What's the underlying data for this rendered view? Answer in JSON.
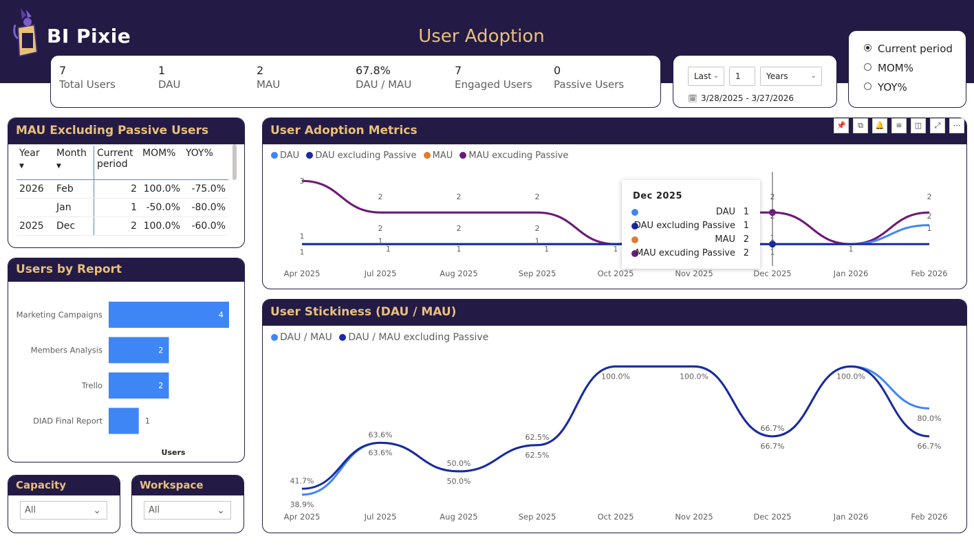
{
  "header": {
    "brand": "BI Pixie",
    "title": "User Adoption"
  },
  "kpis": [
    {
      "value": "7",
      "label": "Total Users"
    },
    {
      "value": "1",
      "label": "DAU"
    },
    {
      "value": "2",
      "label": "MAU"
    },
    {
      "value": "67.8%",
      "label": "DAU / MAU"
    },
    {
      "value": "7",
      "label": "Engaged Users"
    },
    {
      "value": "0",
      "label": "Passive Users"
    }
  ],
  "date_filter": {
    "relative": "Last",
    "amount": "1",
    "unit": "Years",
    "range": "3/28/2025 - 3/27/2026"
  },
  "period_options": [
    {
      "label": "Current period",
      "selected": true
    },
    {
      "label": "MOM%",
      "selected": false
    },
    {
      "label": "YOY%",
      "selected": false
    }
  ],
  "mau_table": {
    "title": "MAU Excluding Passive Users",
    "headers": [
      "Year",
      "Month",
      "Current period",
      "MOM%",
      "YOY%"
    ],
    "rows": [
      [
        "2026",
        "Feb",
        "2",
        "100.0%",
        "-75.0%"
      ],
      [
        "",
        "Jan",
        "1",
        "-50.0%",
        "-80.0%"
      ],
      [
        "2025",
        "Dec",
        "2",
        "100.0%",
        "-60.0%"
      ]
    ]
  },
  "users_by_report": {
    "title": "Users by Report",
    "xlabel": "Users",
    "chart_data": {
      "type": "bar",
      "orientation": "horizontal",
      "categories": [
        "Marketing Campaigns",
        "Members Analysis",
        "Trello",
        "DIAD Final Report"
      ],
      "values": [
        4,
        2,
        2,
        1
      ],
      "xlabel": "Users",
      "color": "#3e86f5"
    }
  },
  "slicers": {
    "capacity": {
      "title": "Capacity",
      "value": "All"
    },
    "workspace": {
      "title": "Workspace",
      "value": "All"
    }
  },
  "adoption_chart": {
    "title": "User Adoption Metrics",
    "toolbar_icons": [
      "pin-icon",
      "copy-icon",
      "bell-icon",
      "filter-icon",
      "visual-format-icon",
      "focus-mode-icon",
      "more-options-icon"
    ],
    "chart_data": {
      "type": "line",
      "x": [
        "Apr 2025",
        "Jul 2025",
        "Aug 2025",
        "Sep 2025",
        "Oct 2025",
        "Nov 2025",
        "Dec 2025",
        "Jan 2026",
        "Feb 2026"
      ],
      "series": [
        {
          "name": "DAU",
          "color": "#3e86f5",
          "values": [
            1,
            1,
            1,
            1,
            1,
            1,
            1,
            1,
            1.6
          ]
        },
        {
          "name": "DAU excluding Passive",
          "color": "#1a2aa0",
          "values": [
            1,
            1,
            1,
            1,
            1,
            1,
            1,
            1,
            1
          ]
        },
        {
          "name": "MAU",
          "color": "#e07a33",
          "values": [
            3,
            2,
            2,
            2,
            1,
            2,
            2,
            1,
            2
          ]
        },
        {
          "name": "MAU excuding Passive",
          "color": "#6b1a7c",
          "values": [
            3,
            2,
            2,
            2,
            1,
            2,
            2,
            1,
            2
          ]
        }
      ],
      "data_labels": [
        {
          "text": "3",
          "i": 0,
          "y": 3
        },
        {
          "text": "1",
          "i": 0,
          "y": 1.25
        },
        {
          "text": "1",
          "i": 0,
          "y": 0.75
        },
        {
          "text": "2",
          "i": 1,
          "y": 2.5
        },
        {
          "text": "2",
          "i": 1,
          "y": 1.5
        },
        {
          "text": "1",
          "i": 1,
          "y": 1.1
        },
        {
          "text": "1",
          "i": 1.1,
          "y": 0.85
        },
        {
          "text": "2",
          "i": 2,
          "y": 2.5
        },
        {
          "text": "2",
          "i": 2,
          "y": 1.5
        },
        {
          "text": "1",
          "i": 2,
          "y": 0.85
        },
        {
          "text": "2",
          "i": 3,
          "y": 2.5
        },
        {
          "text": "2",
          "i": 3,
          "y": 1.5
        },
        {
          "text": "1",
          "i": 3,
          "y": 1.1
        },
        {
          "text": "1",
          "i": 3.12,
          "y": 0.85
        },
        {
          "text": "1",
          "i": 4,
          "y": 0.85
        },
        {
          "text": "2",
          "i": 6,
          "y": 2.5
        },
        {
          "text": "2",
          "i": 6,
          "y": 1.9
        },
        {
          "text": "1",
          "i": 6,
          "y": 1.2
        },
        {
          "text": "1",
          "i": 6,
          "y": 0.75
        },
        {
          "text": "1",
          "i": 7,
          "y": 0.85
        },
        {
          "text": "2",
          "i": 8,
          "y": 2.5
        },
        {
          "text": "2",
          "i": 8,
          "y": 1.9
        },
        {
          "text": "1",
          "i": 8,
          "y": 1.5
        }
      ],
      "ylim": [
        0.2,
        3.2
      ],
      "grid": false,
      "legend": "top-left"
    },
    "tooltip": {
      "title": "Dec 2025",
      "rows": [
        {
          "label": "DAU",
          "value": "1",
          "color": "#3e86f5"
        },
        {
          "label": "DAU excluding Passive",
          "value": "1",
          "color": "#1a2aa0"
        },
        {
          "label": "MAU",
          "value": "2",
          "color": "#e07a33"
        },
        {
          "label": "MAU excuding Passive",
          "value": "2",
          "color": "#6b1a7c"
        }
      ]
    }
  },
  "stickiness_chart": {
    "title": "User Stickiness (DAU / MAU)",
    "chart_data": {
      "type": "line",
      "x": [
        "Apr 2025",
        "Jul 2025",
        "Aug 2025",
        "Sep 2025",
        "Oct 2025",
        "Nov 2025",
        "Dec 2025",
        "Jan 2026",
        "Feb 2026"
      ],
      "series": [
        {
          "name": "DAU / MAU",
          "color": "#3e86f5",
          "values": [
            38.9,
            63.6,
            50.0,
            62.5,
            100.0,
            100.0,
            66.7,
            100.0,
            80.0
          ]
        },
        {
          "name": "DAU / MAU excluding Passive",
          "color": "#1a2aa0",
          "values": [
            41.7,
            63.6,
            50.0,
            62.5,
            100.0,
            100.0,
            66.7,
            100.0,
            66.7
          ]
        }
      ],
      "data_labels": [
        {
          "text": "41.7%",
          "i": 0,
          "v": 41.7,
          "pos": "above"
        },
        {
          "text": "38.9%",
          "i": 0,
          "v": 38.9,
          "pos": "below"
        },
        {
          "text": "63.6%",
          "i": 1,
          "v": 63.6,
          "pos": "above"
        },
        {
          "text": "63.6%",
          "i": 1,
          "v": 63.6,
          "pos": "below"
        },
        {
          "text": "50.0%",
          "i": 2,
          "v": 50.0,
          "pos": "above"
        },
        {
          "text": "50.0%",
          "i": 2,
          "v": 50.0,
          "pos": "below"
        },
        {
          "text": "62.5%",
          "i": 3,
          "v": 62.5,
          "pos": "above"
        },
        {
          "text": "62.5%",
          "i": 3,
          "v": 62.5,
          "pos": "below"
        },
        {
          "text": "100.0%",
          "i": 4,
          "v": 100.0,
          "pos": "below"
        },
        {
          "text": "100.0%",
          "i": 5,
          "v": 100.0,
          "pos": "below"
        },
        {
          "text": "66.7%",
          "i": 6,
          "v": 66.7,
          "pos": "above"
        },
        {
          "text": "66.7%",
          "i": 6,
          "v": 66.7,
          "pos": "below"
        },
        {
          "text": "100.0%",
          "i": 7,
          "v": 100.0,
          "pos": "below"
        },
        {
          "text": "80.0%",
          "i": 8,
          "v": 80.0,
          "pos": "below"
        },
        {
          "text": "66.7%",
          "i": 8,
          "v": 66.7,
          "pos": "below"
        }
      ],
      "ylim": [
        30,
        105
      ],
      "grid": false,
      "legend": "top-left"
    }
  }
}
